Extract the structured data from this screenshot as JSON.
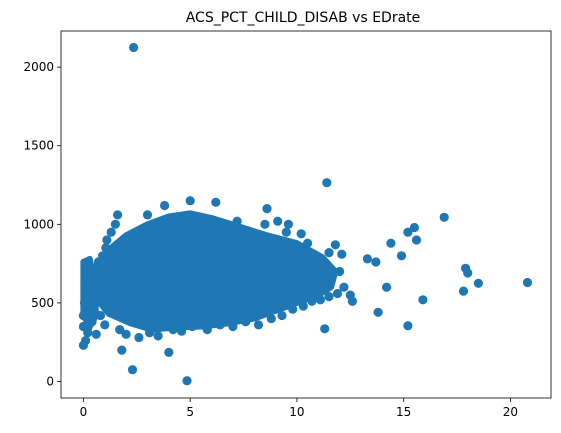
{
  "chart_data": {
    "type": "scatter",
    "title": "ACS_PCT_CHILD_DISAB vs EDrate",
    "xlabel": "",
    "ylabel": "",
    "xlim": [
      -1.05,
      21.9
    ],
    "ylim": [
      -105,
      2230
    ],
    "xticks": [
      0,
      5,
      10,
      15,
      20
    ],
    "yticks": [
      0,
      500,
      1000,
      1500,
      2000
    ],
    "grid": false,
    "point_color": "#1f77b4",
    "series": [
      {
        "x": [
          2.35,
          4.85,
          2.3,
          4.0,
          11.4,
          1.8,
          0.1,
          0.2,
          0.0,
          0.0,
          0.0,
          0.05,
          0.1,
          0.3,
          0.5,
          0.6,
          0.7,
          0.9,
          1.05,
          1.1,
          1.3,
          1.5,
          1.6,
          1.4,
          1.2,
          0.8,
          0.4,
          0.2,
          0.6,
          1.0,
          1.7,
          2.0,
          2.6,
          3.1,
          3.5,
          4.2,
          4.6,
          5.1,
          5.8,
          6.4,
          7.0,
          7.6,
          8.2,
          8.8,
          9.3,
          9.8,
          10.3,
          10.7,
          11.1,
          11.5,
          11.9,
          12.2,
          12.5,
          13.3,
          13.7,
          14.2,
          14.4,
          14.9,
          15.2,
          15.5,
          15.6,
          15.9,
          16.9,
          17.8,
          17.9,
          18.0,
          18.5,
          20.8,
          11.3,
          15.2,
          13.8,
          12.6,
          12.0,
          11.8,
          10.5,
          10.9,
          11.6,
          12.1,
          10.2,
          9.6,
          9.1,
          8.6,
          3.0,
          3.8,
          6.2,
          5.0,
          7.2,
          8.5,
          9.5,
          11.5,
          2.2,
          3.3,
          4.4,
          5.4,
          6.0,
          6.6,
          7.4,
          8.0,
          8.9,
          9.9,
          10.6,
          1.5,
          2.5,
          3.6,
          4.7,
          5.6,
          6.8,
          7.8,
          8.7,
          9.4
        ],
        "y": [
          2125,
          5,
          75,
          185,
          1265,
          200,
          260,
          310,
          230,
          350,
          420,
          500,
          560,
          620,
          650,
          700,
          760,
          800,
          850,
          900,
          950,
          1000,
          1060,
          550,
          480,
          420,
          380,
          340,
          300,
          360,
          330,
          300,
          280,
          310,
          290,
          330,
          320,
          350,
          330,
          360,
          350,
          380,
          360,
          400,
          420,
          460,
          480,
          510,
          520,
          540,
          560,
          600,
          550,
          780,
          760,
          600,
          880,
          800,
          950,
          980,
          900,
          520,
          1045,
          575,
          720,
          690,
          625,
          630,
          335,
          355,
          440,
          510,
          700,
          870,
          880,
          760,
          690,
          810,
          940,
          1000,
          1020,
          1100,
          1060,
          1120,
          1140,
          1150,
          1020,
          1000,
          950,
          820,
          650,
          700,
          750,
          720,
          680,
          740,
          690,
          710,
          700,
          660,
          650,
          820,
          860,
          900,
          870,
          850,
          880,
          860,
          840,
          800
        ]
      }
    ]
  }
}
